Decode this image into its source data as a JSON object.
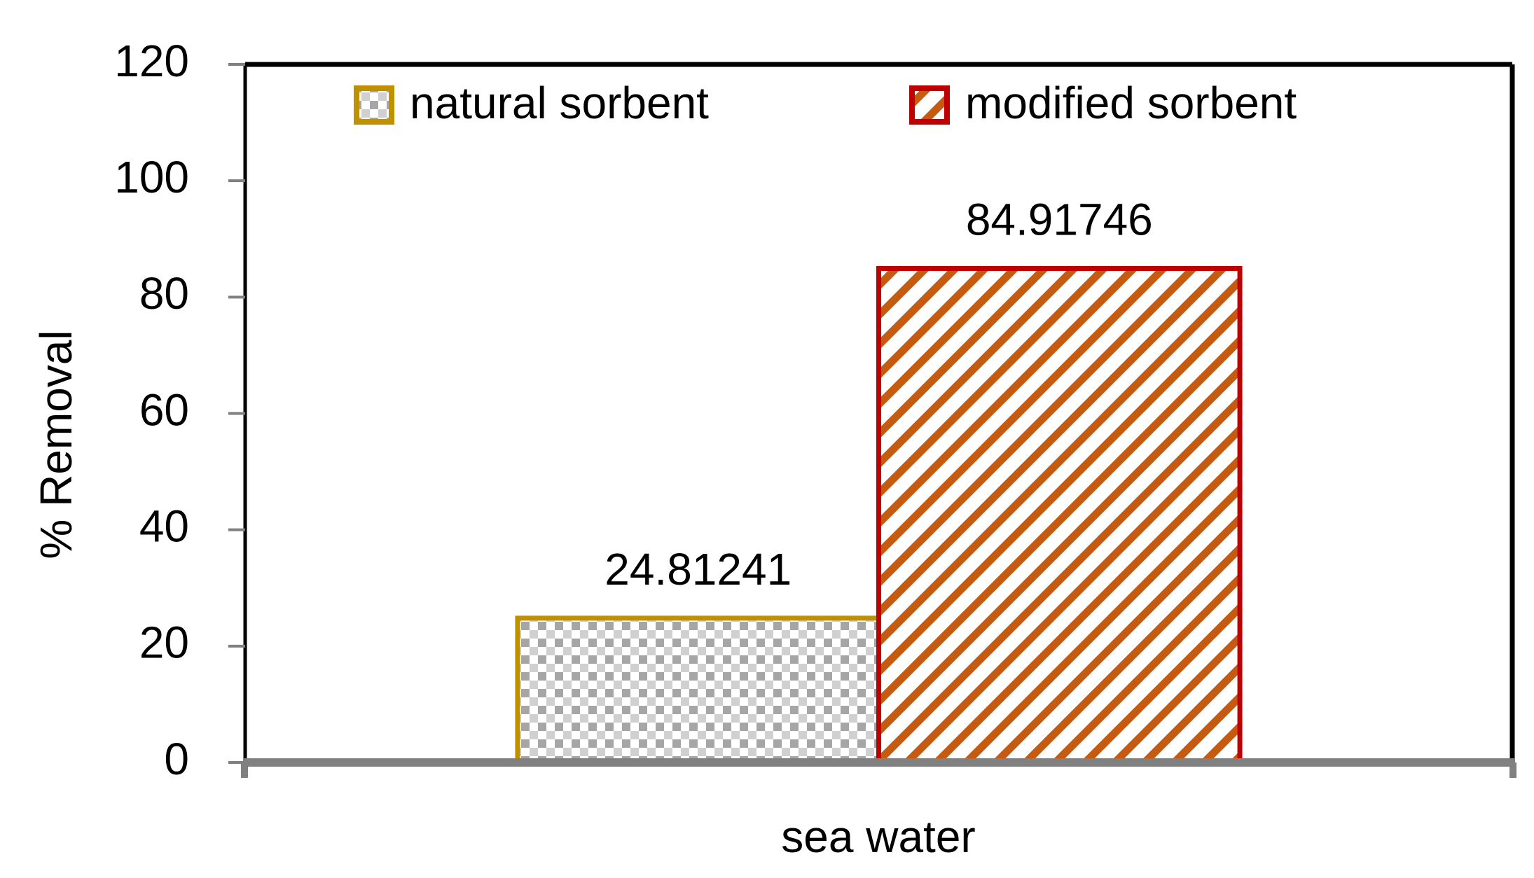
{
  "chart_data": {
    "type": "bar",
    "x_label": "sea water",
    "y_label": "% Removal",
    "categories": [
      "sea water"
    ],
    "series": [
      {
        "name": "natural sorbent",
        "color": "#bf9000",
        "values": [
          24.81241
        ]
      },
      {
        "name": "modified sorbent",
        "color": "#c00000",
        "values": [
          84.91746
        ]
      }
    ],
    "ylim": [
      0,
      120
    ],
    "yticks": [
      0,
      20,
      40,
      60,
      80,
      100,
      120
    ],
    "legend": "top",
    "grid": false
  }
}
